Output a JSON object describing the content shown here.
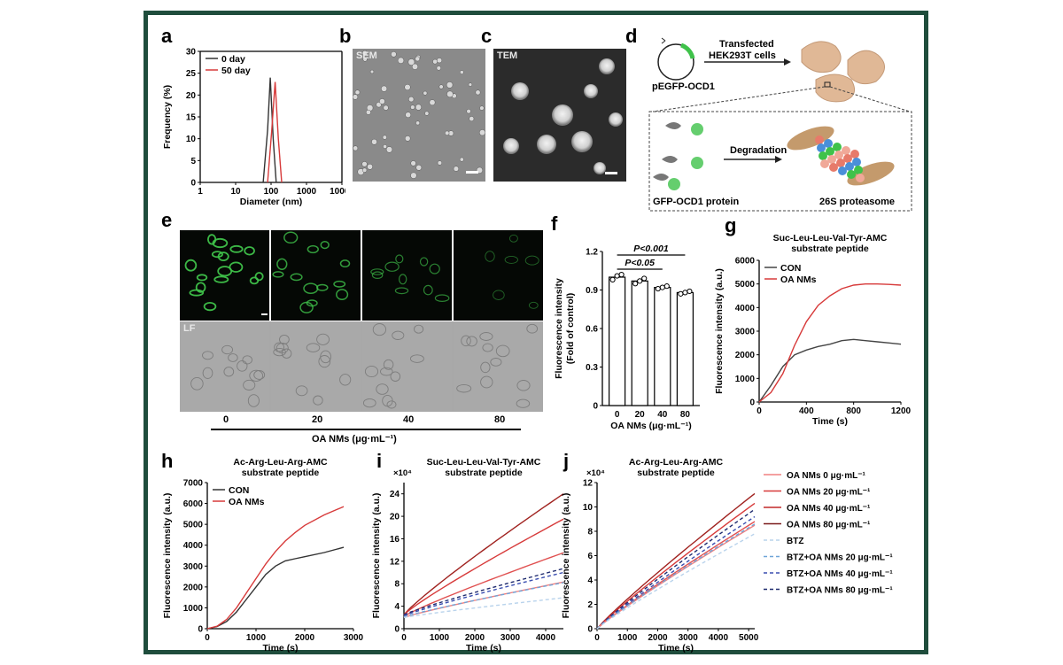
{
  "panel_labels": {
    "a": "a",
    "b": "b",
    "c": "c",
    "d": "d",
    "e": "e",
    "f": "f",
    "g": "g",
    "h": "h",
    "i": "i",
    "j": "j"
  },
  "panel_b": {
    "tag": "SEM"
  },
  "panel_c": {
    "tag": "TEM"
  },
  "panel_d": {
    "plasmid": "pEGFP-OCD1",
    "arrow_label_1": "Transfected",
    "arrow_label_2": "HEK293T cells",
    "degradation": "Degradation",
    "protein": "GFP-OCD1 protein",
    "proteasome": "26S proteasome"
  },
  "panel_e": {
    "lf_tag": "LF",
    "doses": [
      "0",
      "20",
      "40",
      "80"
    ],
    "xlabel": "OA NMs (μg·mL⁻¹)"
  },
  "colors": {
    "con": "#333333",
    "oa": "#d73a3a",
    "frame": "#1f4d3c",
    "gfp": "#3fc24a"
  },
  "chart_data": [
    {
      "id": "a",
      "type": "line",
      "xlabel": "Diameter (nm)",
      "ylabel": "Frequency (%)",
      "xscale": "log",
      "xlim": [
        1,
        10000
      ],
      "ylim": [
        0,
        30
      ],
      "xticks": [
        "1",
        "10",
        "100",
        "1000",
        "10000"
      ],
      "yticks": [
        "0",
        "5",
        "10",
        "15",
        "20",
        "25",
        "30"
      ],
      "legend": "top-left",
      "series": [
        {
          "name": "0 day",
          "color": "#333333",
          "x": [
            60,
            80,
            95,
            115,
            140
          ],
          "y": [
            0,
            12,
            24,
            10,
            0
          ]
        },
        {
          "name": "50 day",
          "color": "#d73a3a",
          "x": [
            80,
            105,
            130,
            160,
            200
          ],
          "y": [
            0,
            12,
            23,
            10,
            0
          ]
        }
      ]
    },
    {
      "id": "f",
      "type": "bar",
      "xlabel": "OA NMs (μg·mL⁻¹)",
      "ylabel": "Fluorescence intensity (Fold of control)",
      "categories": [
        "0",
        "20",
        "40",
        "80"
      ],
      "values": [
        1.0,
        0.97,
        0.92,
        0.88
      ],
      "points": [
        [
          0.98,
          1.01,
          1.02
        ],
        [
          0.95,
          0.97,
          0.99
        ],
        [
          0.91,
          0.92,
          0.93
        ],
        [
          0.87,
          0.88,
          0.89
        ]
      ],
      "ylim": [
        0,
        1.2
      ],
      "yticks": [
        "0",
        "0.3",
        "0.6",
        "0.9",
        "1.2"
      ],
      "annotations": [
        "P<0.001",
        "P<0.05"
      ]
    },
    {
      "id": "g",
      "type": "line",
      "title": "Suc-Leu-Leu-Val-Tyr-AMC substrate peptide",
      "xlabel": "Time (s)",
      "ylabel": "Fluorescence intensity (a.u.)",
      "xlim": [
        0,
        1200
      ],
      "ylim": [
        0,
        6000
      ],
      "xticks": [
        "0",
        "400",
        "800",
        "1200"
      ],
      "yticks": [
        "0",
        "1000",
        "2000",
        "3000",
        "4000",
        "5000",
        "6000"
      ],
      "legend": "top-left",
      "series": [
        {
          "name": "CON",
          "color": "#444444",
          "x": [
            0,
            100,
            200,
            300,
            400,
            500,
            600,
            700,
            800,
            900,
            1000,
            1100,
            1200
          ],
          "y": [
            0,
            700,
            1500,
            2000,
            2200,
            2350,
            2450,
            2600,
            2650,
            2600,
            2550,
            2500,
            2450
          ]
        },
        {
          "name": "OA NMs",
          "color": "#d73a3a",
          "x": [
            0,
            100,
            200,
            300,
            400,
            500,
            600,
            700,
            800,
            900,
            1000,
            1100,
            1200
          ],
          "y": [
            0,
            400,
            1200,
            2400,
            3400,
            4100,
            4500,
            4800,
            4950,
            5000,
            5000,
            4980,
            4950
          ]
        }
      ]
    },
    {
      "id": "h",
      "type": "line",
      "title": "Ac-Arg-Leu-Arg-AMC substrate peptide",
      "xlabel": "Time (s)",
      "ylabel": "Fluorescence intensity (a.u.)",
      "xlim": [
        0,
        3000
      ],
      "ylim": [
        0,
        7000
      ],
      "xticks": [
        "0",
        "1000",
        "2000",
        "3000"
      ],
      "yticks": [
        "0",
        "1000",
        "2000",
        "3000",
        "4000",
        "5000",
        "6000",
        "7000"
      ],
      "legend": "top-left",
      "series": [
        {
          "name": "CON",
          "color": "#333333",
          "x": [
            0,
            200,
            400,
            600,
            800,
            1000,
            1200,
            1400,
            1600,
            1800,
            2000,
            2400,
            2800
          ],
          "y": [
            0,
            100,
            350,
            800,
            1400,
            2000,
            2600,
            3000,
            3250,
            3350,
            3450,
            3650,
            3900
          ]
        },
        {
          "name": "OA NMs",
          "color": "#d73a3a",
          "x": [
            0,
            200,
            400,
            600,
            800,
            1000,
            1200,
            1400,
            1600,
            1800,
            2000,
            2400,
            2800
          ],
          "y": [
            0,
            120,
            450,
            1000,
            1700,
            2400,
            3100,
            3700,
            4200,
            4600,
            4950,
            5450,
            5850
          ]
        }
      ]
    },
    {
      "id": "i",
      "type": "line",
      "title": "Suc-Leu-Leu-Val-Tyr-AMC substrate peptide",
      "multiplier": "×10⁴",
      "xlabel": "Time (s)",
      "ylabel": "Fluorescence intensity (a.u.)",
      "xlim": [
        0,
        4500
      ],
      "ylim": [
        0,
        26
      ],
      "xticks": [
        "0",
        "1000",
        "2000",
        "3000",
        "4000"
      ],
      "yticks": [
        "0",
        "4",
        "8",
        "12",
        "16",
        "20",
        "24"
      ],
      "series": [
        {
          "color": "#a0221f",
          "dashed": false,
          "x": [
            0,
            4500
          ],
          "y": [
            2.5,
            24
          ]
        },
        {
          "color": "#d73a3a",
          "dashed": false,
          "x": [
            0,
            4500
          ],
          "y": [
            2.5,
            19.5
          ]
        },
        {
          "color": "#e05050",
          "dashed": false,
          "x": [
            0,
            4500
          ],
          "y": [
            2.2,
            13.5
          ]
        },
        {
          "color": "#f08080",
          "dashed": false,
          "x": [
            0,
            4500
          ],
          "y": [
            2,
            8.3
          ]
        },
        {
          "color": "#1e2a6e",
          "dashed": true,
          "x": [
            0,
            4500
          ],
          "y": [
            2.5,
            10.7
          ]
        },
        {
          "color": "#3b4fb0",
          "dashed": true,
          "x": [
            0,
            4500
          ],
          "y": [
            2.3,
            10
          ]
        },
        {
          "color": "#6fa5d8",
          "dashed": true,
          "x": [
            0,
            4500
          ],
          "y": [
            2.1,
            8.2
          ]
        },
        {
          "color": "#b9d3ec",
          "dashed": true,
          "x": [
            0,
            4500
          ],
          "y": [
            2,
            5.5
          ]
        }
      ]
    },
    {
      "id": "j",
      "type": "line",
      "title": "Ac-Arg-Leu-Arg-AMC substrate peptide",
      "multiplier": "×10⁴",
      "xlabel": "Time (s)",
      "ylabel": "Fluorescence intensity (a.u.)",
      "xlim": [
        0,
        5200
      ],
      "ylim": [
        0,
        12
      ],
      "xticks": [
        "0",
        "1000",
        "2000",
        "3000",
        "4000",
        "5000"
      ],
      "yticks": [
        "0",
        "2",
        "4",
        "6",
        "8",
        "10",
        "12"
      ],
      "series": [
        {
          "color": "#a0221f",
          "dashed": false,
          "x": [
            0,
            5200
          ],
          "y": [
            0,
            11.1
          ]
        },
        {
          "color": "#d73a3a",
          "dashed": false,
          "x": [
            0,
            5200
          ],
          "y": [
            0,
            10.3
          ]
        },
        {
          "color": "#e05050",
          "dashed": false,
          "x": [
            0,
            5200
          ],
          "y": [
            0,
            8.8
          ]
        },
        {
          "color": "#f08080",
          "dashed": false,
          "x": [
            0,
            5200
          ],
          "y": [
            0,
            8.5
          ]
        },
        {
          "color": "#1e2a6e",
          "dashed": true,
          "x": [
            0,
            5200
          ],
          "y": [
            0,
            9.8
          ]
        },
        {
          "color": "#3b4fb0",
          "dashed": true,
          "x": [
            0,
            5200
          ],
          "y": [
            0,
            9.2
          ]
        },
        {
          "color": "#6fa5d8",
          "dashed": true,
          "x": [
            0,
            5200
          ],
          "y": [
            0,
            8.6
          ]
        },
        {
          "color": "#b9d3ec",
          "dashed": true,
          "x": [
            0,
            5200
          ],
          "y": [
            0,
            7.8
          ]
        }
      ]
    }
  ],
  "legend_ij": [
    {
      "label": "OA NMs 0 μg·mL⁻¹",
      "color": "#f08080",
      "dashed": false
    },
    {
      "label": "OA NMs 20 μg·mL⁻¹",
      "color": "#d73a3a",
      "dashed": false
    },
    {
      "label": "OA NMs 40 μg·mL⁻¹",
      "color": "#c22a2a",
      "dashed": false
    },
    {
      "label": "OA NMs 80 μg·mL⁻¹",
      "color": "#7a1a1a",
      "dashed": false
    },
    {
      "label": "BTZ",
      "color": "#b9d3ec",
      "dashed": true
    },
    {
      "label": "BTZ+OA NMs 20 μg·mL⁻¹",
      "color": "#6fa5d8",
      "dashed": true
    },
    {
      "label": "BTZ+OA NMs 40 μg·mL⁻¹",
      "color": "#3b4fb0",
      "dashed": true
    },
    {
      "label": "BTZ+OA NMs 80 μg·mL⁻¹",
      "color": "#1e2a6e",
      "dashed": true
    }
  ]
}
